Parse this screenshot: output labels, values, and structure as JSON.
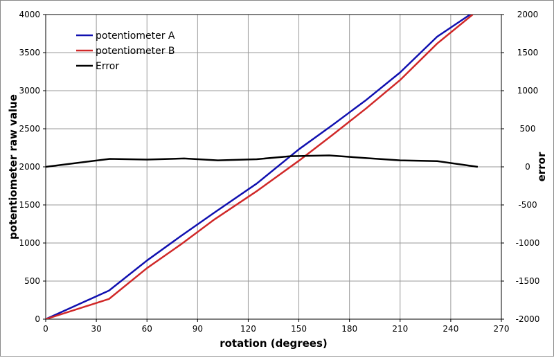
{
  "chart_data": {
    "type": "line",
    "title": "",
    "xlabel": "rotation (degrees)",
    "ylabel": "potentiometer raw value",
    "y2label": "error",
    "xlim": [
      0,
      270
    ],
    "ylim": [
      0,
      4000
    ],
    "y2lim": [
      -2000,
      2000
    ],
    "xticks": [
      0,
      30,
      60,
      90,
      120,
      150,
      180,
      210,
      240,
      270
    ],
    "yticks": [
      0,
      500,
      1000,
      1500,
      2000,
      2500,
      3000,
      3500,
      4000
    ],
    "y2ticks": [
      -2000,
      -1500,
      -1000,
      -500,
      0,
      500,
      1000,
      1500,
      2000
    ],
    "grid": true,
    "legend_position": "top-left",
    "series": [
      {
        "name": "potentiometer A",
        "axis": "left",
        "color": "#1010b0",
        "x": [
          0,
          37.5,
          60,
          80,
          100,
          125,
          150,
          170,
          190,
          210,
          232,
          251.5
        ],
        "y": [
          0,
          375,
          770,
          1090,
          1400,
          1780,
          2230,
          2550,
          2880,
          3240,
          3710,
          4000
        ]
      },
      {
        "name": "potentiometer B",
        "axis": "left",
        "color": "#d02828",
        "x": [
          0,
          37.5,
          60,
          80,
          100,
          125,
          150,
          170,
          190,
          210,
          232,
          253
        ],
        "y": [
          0,
          265,
          670,
          980,
          1310,
          1680,
          2080,
          2420,
          2770,
          3140,
          3620,
          4000
        ]
      },
      {
        "name": "Error",
        "axis": "right",
        "color": "#000000",
        "x": [
          0,
          38,
          60,
          82,
          102,
          125,
          145,
          168,
          190,
          210,
          232,
          256
        ],
        "y": [
          0,
          105,
          95,
          110,
          85,
          100,
          140,
          150,
          115,
          85,
          75,
          0
        ]
      }
    ]
  }
}
